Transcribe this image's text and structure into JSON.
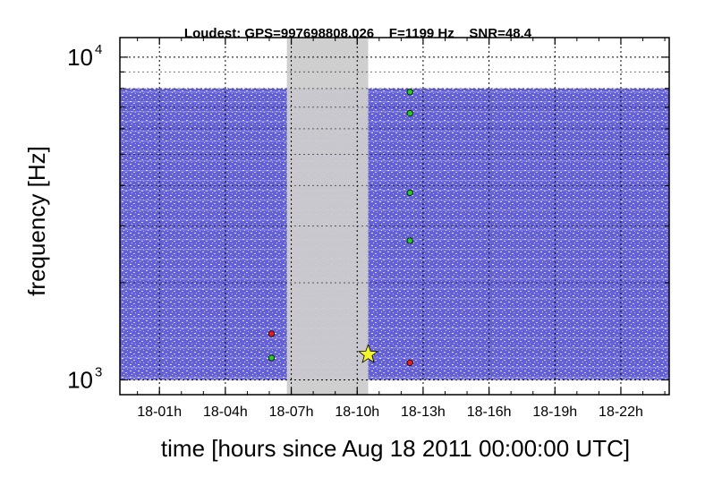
{
  "chart_data": {
    "type": "scatter",
    "title": "Loudest: GPS=997698808.026    F=1199 Hz    SNR=48.4",
    "xlabel": "time [hours since Aug 18 2011 00:00:00 UTC]",
    "ylabel": "frequency [Hz]",
    "xlim": [
      -0.8,
      24.2
    ],
    "ylim": [
      900,
      11500
    ],
    "yscale": "log",
    "grid": true,
    "x_ticks": [
      {
        "value": 1,
        "label": "18-01h"
      },
      {
        "value": 4,
        "label": "18-04h"
      },
      {
        "value": 7,
        "label": "18-07h"
      },
      {
        "value": 10,
        "label": "18-10h"
      },
      {
        "value": 13,
        "label": "18-13h"
      },
      {
        "value": 16,
        "label": "18-16h"
      },
      {
        "value": 19,
        "label": "18-19h"
      },
      {
        "value": 22,
        "label": "18-22h"
      }
    ],
    "y_ticks": [
      {
        "value": 1000,
        "base": "10",
        "exp": "3"
      },
      {
        "value": 10000,
        "base": "10",
        "exp": "4"
      }
    ],
    "background_band": {
      "f_min": 1000,
      "f_max": 8000,
      "x_min": -0.8,
      "x_max": 24.2,
      "color": "#5b55d6"
    },
    "shaded_interval": {
      "x_start": 6.8,
      "x_end": 10.5,
      "color": "#cccccc"
    },
    "series": [
      {
        "marker": "circle",
        "color": "#22cc22",
        "points": [
          [
            12.4,
            7800
          ],
          [
            12.4,
            6700
          ],
          [
            12.4,
            3800
          ],
          [
            12.4,
            2700
          ],
          [
            6.1,
            1170
          ]
        ]
      },
      {
        "marker": "circle",
        "color": "#e81c1c",
        "points": [
          [
            6.1,
            1390
          ],
          [
            12.4,
            1130
          ]
        ]
      },
      {
        "marker": "star",
        "color": "#f4f42a",
        "points": [
          [
            10.5,
            1199
          ]
        ]
      }
    ]
  }
}
